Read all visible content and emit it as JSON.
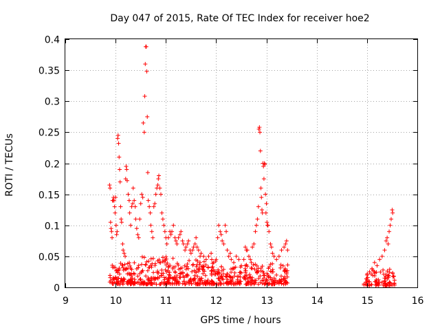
{
  "chart_data": {
    "type": "scatter",
    "title": "Day 047 of 2015, Rate Of TEC Index for receiver hoe2",
    "xlabel": "GPS time / hours",
    "ylabel": "ROTI / TECUs",
    "xlim": [
      9,
      16
    ],
    "ylim": [
      0,
      0.4
    ],
    "x_ticks": [
      "9",
      "10",
      "11",
      "12",
      "13",
      "14",
      "15",
      "16"
    ],
    "y_ticks": [
      "0",
      "0.05",
      "0.1",
      "0.15",
      "0.2",
      "0.25",
      "0.3",
      "0.35",
      "0.4"
    ],
    "grid": true,
    "marker": "plus",
    "series": [
      {
        "name": "hoe2",
        "color": "#ff0000",
        "points": [
          [
            9.88,
            0.165
          ],
          [
            9.89,
            0.16
          ],
          [
            9.9,
            0.105
          ],
          [
            9.91,
            0.095
          ],
          [
            9.92,
            0.09
          ],
          [
            9.93,
            0.08
          ],
          [
            9.94,
            0.14
          ],
          [
            9.95,
            0.14
          ],
          [
            9.96,
            0.145
          ],
          [
            9.97,
            0.14
          ],
          [
            9.98,
            0.13
          ],
          [
            9.99,
            0.12
          ],
          [
            10.0,
            0.145
          ],
          [
            10.01,
            0.1
          ],
          [
            10.02,
            0.085
          ],
          [
            10.03,
            0.09
          ],
          [
            10.04,
            0.24
          ],
          [
            10.05,
            0.245
          ],
          [
            10.06,
            0.232
          ],
          [
            10.07,
            0.21
          ],
          [
            10.08,
            0.19
          ],
          [
            10.09,
            0.17
          ],
          [
            10.1,
            0.13
          ],
          [
            10.11,
            0.11
          ],
          [
            10.12,
            0.105
          ],
          [
            10.14,
            0.07
          ],
          [
            10.15,
            0.06
          ],
          [
            10.17,
            0.055
          ],
          [
            10.19,
            0.05
          ],
          [
            10.2,
            0.175
          ],
          [
            10.21,
            0.195
          ],
          [
            10.22,
            0.19
          ],
          [
            10.23,
            0.172
          ],
          [
            10.25,
            0.15
          ],
          [
            10.27,
            0.14
          ],
          [
            10.28,
            0.12
          ],
          [
            10.3,
            0.1
          ],
          [
            10.32,
            0.13
          ],
          [
            10.34,
            0.135
          ],
          [
            10.35,
            0.16
          ],
          [
            10.37,
            0.14
          ],
          [
            10.39,
            0.13
          ],
          [
            10.4,
            0.11
          ],
          [
            10.42,
            0.095
          ],
          [
            10.44,
            0.085
          ],
          [
            10.46,
            0.08
          ],
          [
            10.48,
            0.11
          ],
          [
            10.5,
            0.135
          ],
          [
            10.52,
            0.15
          ],
          [
            10.54,
            0.145
          ],
          [
            10.55,
            0.265
          ],
          [
            10.57,
            0.25
          ],
          [
            10.58,
            0.308
          ],
          [
            10.59,
            0.36
          ],
          [
            10.6,
            0.388
          ],
          [
            10.61,
            0.388
          ],
          [
            10.62,
            0.348
          ],
          [
            10.63,
            0.275
          ],
          [
            10.64,
            0.185
          ],
          [
            10.65,
            0.14
          ],
          [
            10.67,
            0.13
          ],
          [
            10.69,
            0.12
          ],
          [
            10.7,
            0.1
          ],
          [
            10.72,
            0.09
          ],
          [
            10.74,
            0.08
          ],
          [
            10.76,
            0.13
          ],
          [
            10.78,
            0.135
          ],
          [
            10.8,
            0.15
          ],
          [
            10.82,
            0.16
          ],
          [
            10.84,
            0.165
          ],
          [
            10.85,
            0.175
          ],
          [
            10.86,
            0.18
          ],
          [
            10.88,
            0.16
          ],
          [
            10.9,
            0.15
          ],
          [
            10.92,
            0.12
          ],
          [
            10.94,
            0.11
          ],
          [
            10.96,
            0.1
          ],
          [
            10.98,
            0.09
          ],
          [
            11.0,
            0.08
          ],
          [
            11.02,
            0.07
          ],
          [
            11.05,
            0.08
          ],
          [
            11.08,
            0.09
          ],
          [
            11.1,
            0.085
          ],
          [
            11.12,
            0.09
          ],
          [
            11.15,
            0.1
          ],
          [
            11.18,
            0.08
          ],
          [
            11.2,
            0.075
          ],
          [
            11.22,
            0.07
          ],
          [
            11.25,
            0.08
          ],
          [
            11.28,
            0.085
          ],
          [
            11.3,
            0.09
          ],
          [
            11.33,
            0.075
          ],
          [
            11.35,
            0.07
          ],
          [
            11.38,
            0.06
          ],
          [
            11.4,
            0.065
          ],
          [
            11.43,
            0.07
          ],
          [
            11.45,
            0.075
          ],
          [
            11.48,
            0.06
          ],
          [
            11.5,
            0.055
          ],
          [
            11.53,
            0.06
          ],
          [
            11.55,
            0.065
          ],
          [
            11.58,
            0.07
          ],
          [
            11.6,
            0.08
          ],
          [
            11.62,
            0.065
          ],
          [
            11.65,
            0.06
          ],
          [
            11.68,
            0.05
          ],
          [
            11.7,
            0.055
          ],
          [
            11.75,
            0.05
          ],
          [
            11.8,
            0.045
          ],
          [
            11.85,
            0.05
          ],
          [
            11.9,
            0.055
          ],
          [
            11.95,
            0.04
          ],
          [
            12.0,
            0.045
          ],
          [
            12.03,
            0.08
          ],
          [
            12.05,
            0.1
          ],
          [
            12.08,
            0.09
          ],
          [
            12.1,
            0.085
          ],
          [
            12.12,
            0.075
          ],
          [
            12.15,
            0.07
          ],
          [
            12.18,
            0.1
          ],
          [
            12.2,
            0.09
          ],
          [
            12.22,
            0.06
          ],
          [
            12.25,
            0.05
          ],
          [
            12.28,
            0.055
          ],
          [
            12.3,
            0.045
          ],
          [
            12.35,
            0.04
          ],
          [
            12.4,
            0.05
          ],
          [
            12.45,
            0.045
          ],
          [
            12.5,
            0.035
          ],
          [
            12.55,
            0.045
          ],
          [
            12.58,
            0.065
          ],
          [
            12.6,
            0.06
          ],
          [
            12.62,
            0.06
          ],
          [
            12.65,
            0.05
          ],
          [
            12.68,
            0.045
          ],
          [
            12.7,
            0.04
          ],
          [
            12.72,
            0.065
          ],
          [
            12.75,
            0.07
          ],
          [
            12.78,
            0.09
          ],
          [
            12.8,
            0.1
          ],
          [
            12.82,
            0.11
          ],
          [
            12.84,
            0.13
          ],
          [
            12.85,
            0.255
          ],
          [
            12.86,
            0.258
          ],
          [
            12.87,
            0.25
          ],
          [
            12.88,
            0.22
          ],
          [
            12.89,
            0.16
          ],
          [
            12.9,
            0.145
          ],
          [
            12.91,
            0.125
          ],
          [
            12.92,
            0.12
          ],
          [
            12.93,
            0.2
          ],
          [
            12.94,
            0.195
          ],
          [
            12.95,
            0.175
          ],
          [
            12.96,
            0.2
          ],
          [
            12.97,
            0.198
          ],
          [
            12.98,
            0.15
          ],
          [
            12.99,
            0.12
          ],
          [
            13.0,
            0.135
          ],
          [
            13.01,
            0.105
          ],
          [
            13.02,
            0.1
          ],
          [
            13.03,
            0.1
          ],
          [
            13.05,
            0.09
          ],
          [
            13.08,
            0.07
          ],
          [
            13.1,
            0.065
          ],
          [
            13.12,
            0.055
          ],
          [
            13.15,
            0.05
          ],
          [
            13.2,
            0.045
          ],
          [
            13.25,
            0.05
          ],
          [
            13.3,
            0.06
          ],
          [
            13.35,
            0.065
          ],
          [
            13.38,
            0.07
          ],
          [
            13.4,
            0.075
          ],
          [
            13.42,
            0.06
          ],
          [
            15.0,
            0.02
          ],
          [
            15.05,
            0.025
          ],
          [
            15.1,
            0.03
          ],
          [
            15.15,
            0.04
          ],
          [
            15.2,
            0.035
          ],
          [
            15.25,
            0.045
          ],
          [
            15.3,
            0.05
          ],
          [
            15.35,
            0.06
          ],
          [
            15.38,
            0.075
          ],
          [
            15.4,
            0.08
          ],
          [
            15.42,
            0.07
          ],
          [
            15.44,
            0.09
          ],
          [
            15.46,
            0.1
          ],
          [
            15.48,
            0.11
          ],
          [
            15.5,
            0.125
          ],
          [
            15.51,
            0.12
          ]
        ],
        "dense_band": [
          {
            "x_range": [
              9.88,
              10.5
            ],
            "y_range": [
              0.005,
              0.04
            ],
            "count": 110
          },
          {
            "x_range": [
              10.5,
              11.2
            ],
            "y_range": [
              0.005,
              0.05
            ],
            "count": 130
          },
          {
            "x_range": [
              11.2,
              12.0
            ],
            "y_range": [
              0.005,
              0.045
            ],
            "count": 150
          },
          {
            "x_range": [
              12.0,
              12.5
            ],
            "y_range": [
              0.005,
              0.035
            ],
            "count": 90
          },
          {
            "x_range": [
              12.55,
              13.45
            ],
            "y_range": [
              0.005,
              0.04
            ],
            "count": 150
          },
          {
            "x_range": [
              14.93,
              15.55
            ],
            "y_range": [
              0.003,
              0.03
            ],
            "count": 90
          }
        ]
      }
    ]
  }
}
